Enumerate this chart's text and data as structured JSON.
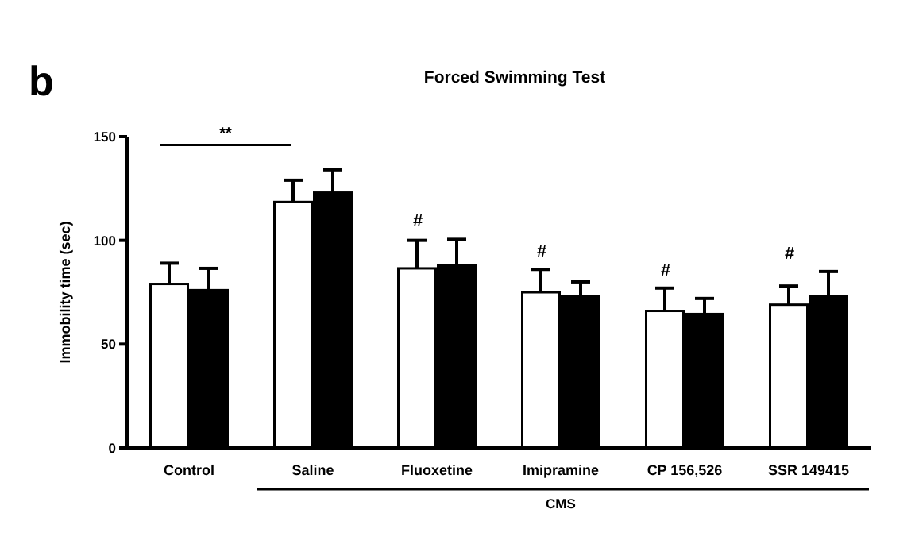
{
  "chart_data": {
    "type": "bar",
    "title": "Forced Swimming Test",
    "ylabel": "Immobility time (sec)",
    "categories": [
      "Control",
      "Saline",
      "Fluoxetine",
      "Imipramine",
      "CP 156,526",
      "SSR 149415"
    ],
    "series": [
      {
        "color": "#ffffff",
        "values": [
          79,
          118.5,
          86.5,
          75,
          66,
          69
        ],
        "errors": [
          [
            79,
            89
          ],
          [
            118.5,
            129
          ],
          [
            86.5,
            100
          ],
          [
            75,
            86
          ],
          [
            66,
            77
          ],
          [
            69,
            78
          ]
        ]
      },
      {
        "color": "#000000",
        "values": [
          76,
          123,
          88,
          73,
          64.5,
          73
        ],
        "errors": [
          [
            76,
            86.5
          ],
          [
            123,
            134
          ],
          [
            88,
            100.5
          ],
          [
            73,
            80
          ],
          [
            64.5,
            72
          ],
          [
            73,
            85
          ]
        ]
      }
    ],
    "ylim": [
      0,
      150
    ],
    "yticks": [
      0,
      50,
      100,
      150
    ],
    "grid": false,
    "annotations": [
      "b",
      "**",
      "CMS",
      "#",
      "#",
      "#",
      "#"
    ]
  }
}
